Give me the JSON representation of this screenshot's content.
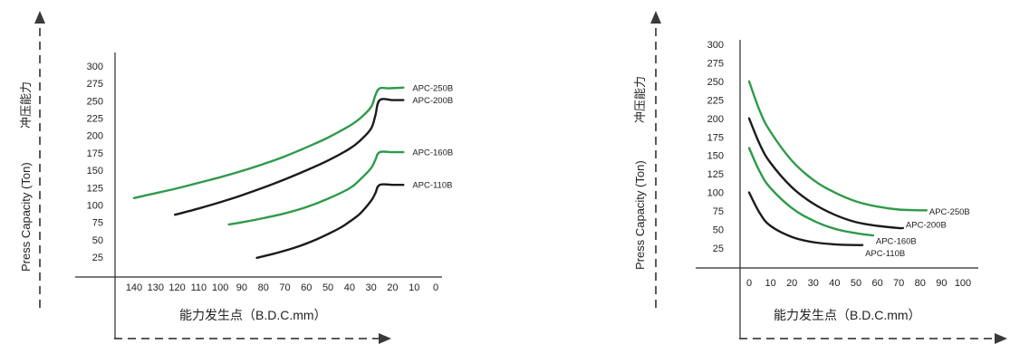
{
  "colors": {
    "green": "#2e9a4a",
    "black": "#1b1b1b",
    "axis": "#2a2a2a",
    "arrow": "#5a5a5a"
  },
  "chart_data": [
    {
      "type": "line",
      "xlabel": "能力发生点（B.D.C.mm）",
      "ylabel_en": "Press Capacity (Ton)",
      "ylabel_cn": "冲压能力",
      "xlim": [
        140,
        0
      ],
      "ylim": [
        0,
        300
      ],
      "x_ticks": [
        "140",
        "130",
        "120",
        "110",
        "100",
        "90",
        "80",
        "70",
        "60",
        "50",
        "40",
        "30",
        "20",
        "10",
        "0"
      ],
      "y_ticks": [
        "300",
        "275",
        "250",
        "225",
        "200",
        "175",
        "150",
        "125",
        "100",
        "75",
        "50",
        "25"
      ],
      "series": [
        {
          "name": "APC-250B",
          "color": "green",
          "points": [
            [
              140,
              110
            ],
            [
              130,
              117
            ],
            [
              120,
              124
            ],
            [
              110,
              132
            ],
            [
              100,
              140
            ],
            [
              90,
              149
            ],
            [
              80,
              159
            ],
            [
              70,
              170
            ],
            [
              60,
              183
            ],
            [
              50,
              197
            ],
            [
              40,
              214
            ],
            [
              35,
              225
            ],
            [
              30,
              241
            ],
            [
              28,
              258
            ],
            [
              26,
              268
            ],
            [
              22,
              268
            ],
            [
              15,
              269
            ]
          ]
        },
        {
          "name": "APC-200B",
          "color": "black",
          "points": [
            [
              121,
              86
            ],
            [
              110,
              95
            ],
            [
              100,
              104
            ],
            [
              90,
              114
            ],
            [
              80,
              125
            ],
            [
              70,
              137
            ],
            [
              60,
              150
            ],
            [
              50,
              164
            ],
            [
              40,
              181
            ],
            [
              35,
              193
            ],
            [
              30,
              210
            ],
            [
              28,
              229
            ],
            [
              26,
              251
            ],
            [
              20,
              251
            ],
            [
              15,
              251
            ]
          ]
        },
        {
          "name": "APC-160B",
          "color": "green",
          "points": [
            [
              96,
              72
            ],
            [
              90,
              75
            ],
            [
              80,
              81
            ],
            [
              70,
              88
            ],
            [
              60,
              97
            ],
            [
              50,
              109
            ],
            [
              40,
              124
            ],
            [
              35,
              137
            ],
            [
              30,
              153
            ],
            [
              28,
              165
            ],
            [
              26,
              176
            ],
            [
              20,
              176
            ],
            [
              15,
              176
            ]
          ]
        },
        {
          "name": "APC-110B",
          "color": "black",
          "points": [
            [
              83,
              24
            ],
            [
              75,
              30
            ],
            [
              65,
              39
            ],
            [
              55,
              51
            ],
            [
              45,
              66
            ],
            [
              40,
              76
            ],
            [
              35,
              88
            ],
            [
              30,
              106
            ],
            [
              28,
              117
            ],
            [
              26,
              129
            ],
            [
              20,
              129
            ],
            [
              15,
              129
            ]
          ]
        }
      ]
    },
    {
      "type": "line",
      "xlabel": "能力发生点（B.D.C.mm）",
      "ylabel_en": "Press Capacity (Ton)",
      "ylabel_cn": "冲压能力",
      "xlim": [
        0,
        100
      ],
      "ylim": [
        0,
        300
      ],
      "x_ticks": [
        "0",
        "10",
        "20",
        "30",
        "40",
        "50",
        "60",
        "70",
        "80",
        "90",
        "100"
      ],
      "y_ticks": [
        "300",
        "275",
        "250",
        "225",
        "200",
        "175",
        "150",
        "125",
        "100",
        "75",
        "50",
        "25"
      ],
      "series": [
        {
          "name": "APC-250B",
          "color": "green",
          "points": [
            [
              0,
              250
            ],
            [
              5,
              210
            ],
            [
              10,
              182
            ],
            [
              20,
              143
            ],
            [
              30,
              117
            ],
            [
              40,
              100
            ],
            [
              50,
              88
            ],
            [
              60,
              81
            ],
            [
              70,
              77
            ],
            [
              80,
              76
            ],
            [
              83,
              76
            ]
          ]
        },
        {
          "name": "APC-200B",
          "color": "black",
          "points": [
            [
              0,
              200
            ],
            [
              5,
              165
            ],
            [
              10,
              140
            ],
            [
              20,
              107
            ],
            [
              30,
              85
            ],
            [
              40,
              70
            ],
            [
              50,
              60
            ],
            [
              60,
              55
            ],
            [
              70,
              52
            ],
            [
              72,
              52
            ]
          ]
        },
        {
          "name": "APC-160B",
          "color": "green",
          "points": [
            [
              0,
              160
            ],
            [
              5,
              128
            ],
            [
              10,
              106
            ],
            [
              20,
              79
            ],
            [
              30,
              62
            ],
            [
              40,
              51
            ],
            [
              50,
              45
            ],
            [
              58,
              42
            ]
          ]
        },
        {
          "name": "APC-110B",
          "color": "black",
          "points": [
            [
              0,
              100
            ],
            [
              5,
              72
            ],
            [
              10,
              55
            ],
            [
              20,
              40
            ],
            [
              30,
              33
            ],
            [
              40,
              30
            ],
            [
              50,
              29
            ],
            [
              53,
              29
            ]
          ]
        }
      ]
    }
  ]
}
